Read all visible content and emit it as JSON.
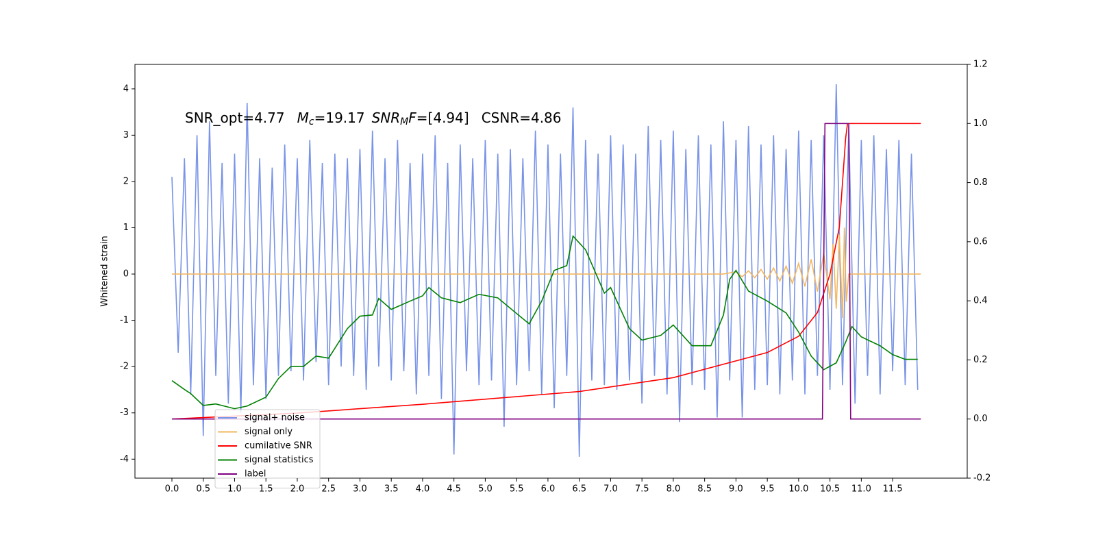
{
  "chart_data": {
    "type": "line",
    "annotation": [
      "SNR_opt=4.77",
      "M",
      "c",
      "=19.17",
      "SNR",
      "M",
      "F",
      "=[4.94]",
      "CSNR=4.86"
    ],
    "ylabel": "Whitened strain",
    "xlim": [
      -0.59,
      12.69
    ],
    "ylim": [
      -4.41,
      4.53
    ],
    "y2lim": [
      -0.2,
      1.2
    ],
    "xticks": [
      {
        "value": 0,
        "label": "0.0"
      },
      0.5,
      {
        "value": 1,
        "label": "1.0"
      },
      1.5,
      {
        "value": 2,
        "label": "2.0"
      },
      2.5,
      {
        "value": 3,
        "label": "3.0"
      },
      3.5,
      {
        "value": 4,
        "label": "4.0"
      },
      4.5,
      {
        "value": 5,
        "label": "5.0"
      },
      5.5,
      {
        "value": 6,
        "label": "6.0"
      },
      6.5,
      {
        "value": 7,
        "label": "7.0"
      },
      7.5,
      {
        "value": 8,
        "label": "8.0"
      },
      8.5,
      {
        "value": 9,
        "label": "9.0"
      },
      9.5,
      {
        "value": 10,
        "label": "10.0"
      },
      10.5,
      {
        "value": 11,
        "label": "11.0"
      },
      11.5
    ],
    "yticks": [
      -4,
      -3,
      -2,
      -1,
      0,
      1,
      2,
      3,
      4
    ],
    "y2ticks": [
      -0.2,
      {
        "value": 0,
        "label": "0.0"
      },
      0.2,
      0.4,
      0.6,
      0.8,
      {
        "value": 1,
        "label": "1.0"
      },
      1.2
    ],
    "legend": "lower left",
    "series": [
      {
        "name": "signal+ noise",
        "color": "#7893e8",
        "axis": "y",
        "x": [
          0,
          0.1,
          0.2,
          0.3,
          0.4,
          0.5,
          0.6,
          0.7,
          0.8,
          0.9,
          1,
          1.1,
          1.2,
          1.3,
          1.4,
          1.5,
          1.6,
          1.7,
          1.8,
          1.9,
          2,
          2.1,
          2.2,
          2.3,
          2.4,
          2.5,
          2.6,
          2.7,
          2.8,
          2.9,
          3,
          3.1,
          3.2,
          3.3,
          3.4,
          3.5,
          3.6,
          3.7,
          3.8,
          3.9,
          4,
          4.1,
          4.2,
          4.3,
          4.4,
          4.5,
          4.6,
          4.7,
          4.8,
          4.9,
          5,
          5.1,
          5.2,
          5.3,
          5.4,
          5.5,
          5.6,
          5.7,
          5.8,
          5.9,
          6,
          6.1,
          6.2,
          6.3,
          6.4,
          6.5,
          6.6,
          6.7,
          6.8,
          6.9,
          7,
          7.1,
          7.2,
          7.3,
          7.4,
          7.5,
          7.6,
          7.7,
          7.8,
          7.9,
          8,
          8.1,
          8.2,
          8.3,
          8.4,
          8.5,
          8.6,
          8.7,
          8.8,
          8.9,
          9,
          9.1,
          9.2,
          9.3,
          9.4,
          9.5,
          9.6,
          9.7,
          9.8,
          9.9,
          10,
          10.1,
          10.2,
          10.3,
          10.4,
          10.5,
          10.6,
          10.7,
          10.8,
          10.9,
          11,
          11.1,
          11.2,
          11.3,
          11.4,
          11.5,
          11.6,
          11.7,
          11.8,
          11.9
        ],
        "values": [
          2.1,
          -1.7,
          2.5,
          -2.6,
          3.0,
          -3.5,
          3.3,
          -2.2,
          2.4,
          -2.8,
          2.6,
          -3.0,
          3.7,
          -2.4,
          2.5,
          -2.7,
          2.3,
          -2.2,
          2.8,
          -2.1,
          2.5,
          -2.3,
          2.9,
          -1.9,
          2.4,
          -2.4,
          2.6,
          -2.0,
          2.5,
          -2.2,
          2.7,
          -2.5,
          3.1,
          -2.0,
          2.5,
          -2.3,
          2.9,
          -2.1,
          2.4,
          -2.6,
          2.6,
          -2.2,
          3.0,
          -2.7,
          2.4,
          -3.9,
          2.8,
          -2.1,
          2.5,
          -2.4,
          2.9,
          -2.3,
          2.6,
          -3.3,
          2.7,
          -2.4,
          2.5,
          -2.1,
          3.1,
          -2.6,
          2.8,
          -2.9,
          2.6,
          -2.2,
          3.6,
          -3.95,
          2.9,
          -2.3,
          2.6,
          -2.4,
          3.0,
          -2.5,
          2.8,
          -2.3,
          2.6,
          -2.8,
          3.2,
          -2.2,
          2.9,
          -2.6,
          3.1,
          -3.2,
          2.7,
          -2.4,
          3.0,
          -2.5,
          2.8,
          -3.1,
          3.3,
          -2.3,
          2.9,
          -3.1,
          3.2,
          -2.5,
          2.8,
          -2.4,
          3.0,
          -2.6,
          2.7,
          -2.3,
          3.1,
          -2.6,
          2.9,
          -2.2,
          3.0,
          -2.5,
          4.1,
          -2.4,
          3.2,
          -2.8,
          2.9,
          -2.2,
          3.0,
          -2.6,
          2.7,
          -2.1,
          2.9,
          -2.4,
          2.6,
          -2.5
        ]
      },
      {
        "name": "signal only",
        "color": "#f3b75f",
        "axis": "y",
        "x": [
          0,
          8.8,
          9.0,
          9.1,
          9.2,
          9.3,
          9.4,
          9.5,
          9.6,
          9.7,
          9.8,
          9.9,
          10.0,
          10.1,
          10.2,
          10.3,
          10.4,
          10.5,
          10.55,
          10.6,
          10.65,
          10.7,
          10.73,
          10.76,
          10.8,
          11.95
        ],
        "values": [
          0,
          0,
          0.05,
          -0.06,
          0.07,
          -0.08,
          0.1,
          -0.11,
          0.13,
          -0.15,
          0.17,
          -0.2,
          0.23,
          -0.27,
          0.32,
          -0.38,
          0.45,
          -0.55,
          0.65,
          -0.75,
          0.85,
          -0.95,
          1.0,
          -0.6,
          0,
          0
        ]
      },
      {
        "name": "cumilative SNR",
        "color": "#ff0000",
        "axis": "y2",
        "x": [
          0,
          2,
          4,
          6.5,
          8,
          9.5,
          10,
          10.3,
          10.5,
          10.65,
          10.75,
          10.78,
          11.95
        ],
        "values": [
          0,
          0.02,
          0.05,
          0.093,
          0.14,
          0.225,
          0.28,
          0.36,
          0.49,
          0.65,
          0.95,
          1.0,
          1.0
        ]
      },
      {
        "name": "signal statistics",
        "color": "#008000",
        "axis": "y2",
        "x": [
          0,
          0.2,
          0.3,
          0.5,
          0.7,
          1.0,
          1.2,
          1.5,
          1.7,
          1.9,
          2.1,
          2.3,
          2.5,
          2.8,
          3.0,
          3.2,
          3.3,
          3.5,
          3.8,
          4.0,
          4.1,
          4.3,
          4.6,
          4.9,
          5.2,
          5.5,
          5.7,
          5.9,
          6.1,
          6.3,
          6.4,
          6.6,
          6.9,
          7.0,
          7.3,
          7.5,
          7.8,
          8.0,
          8.3,
          8.6,
          8.8,
          8.9,
          9.0,
          9.2,
          9.5,
          9.8,
          10.0,
          10.2,
          10.4,
          10.6,
          10.75,
          10.85,
          11.0,
          11.3,
          11.5,
          11.7,
          11.9
        ],
        "values": [
          0.13,
          0.1,
          0.086,
          0.046,
          0.051,
          0.035,
          0.044,
          0.074,
          0.137,
          0.178,
          0.178,
          0.213,
          0.206,
          0.306,
          0.348,
          0.352,
          0.408,
          0.371,
          0.399,
          0.417,
          0.445,
          0.41,
          0.394,
          0.422,
          0.41,
          0.357,
          0.322,
          0.399,
          0.503,
          0.519,
          0.619,
          0.573,
          0.426,
          0.445,
          0.306,
          0.267,
          0.283,
          0.318,
          0.248,
          0.248,
          0.352,
          0.473,
          0.503,
          0.433,
          0.399,
          0.359,
          0.294,
          0.213,
          0.167,
          0.19,
          0.26,
          0.313,
          0.278,
          0.248,
          0.218,
          0.202,
          0.202
        ]
      },
      {
        "name": "label",
        "color": "#800080",
        "axis": "y2",
        "x": [
          0,
          10.38,
          10.42,
          10.8,
          10.83,
          11.95
        ],
        "values": [
          0,
          0,
          1,
          1,
          0,
          0
        ]
      }
    ]
  }
}
